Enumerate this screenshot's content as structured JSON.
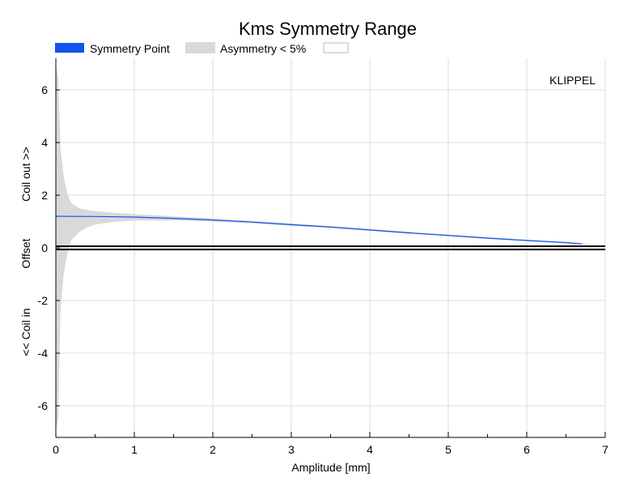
{
  "chart_data": {
    "type": "area",
    "title": "Kms Symmetry Range",
    "xlabel": "Amplitude [mm]",
    "ylabel": {
      "top": "Coil out >>",
      "middle": "Offset",
      "bottom": "<< Coil in"
    },
    "watermark": "KLIPPEL",
    "xlim": [
      0,
      7
    ],
    "ylim": [
      -7.2,
      7.2
    ],
    "x_ticks": [
      0,
      1,
      2,
      3,
      4,
      5,
      6,
      7
    ],
    "y_ticks": [
      -6,
      -4,
      -2,
      0,
      2,
      4,
      6
    ],
    "grid": true,
    "legend": {
      "position": "top",
      "entries": [
        {
          "label": "Symmetry Point",
          "color": "#1155ee",
          "kind": "filled"
        },
        {
          "label": "Asymmetry < 5%",
          "color": "#d9d9d9",
          "kind": "filled"
        },
        {
          "label": "",
          "color": "#ffffff",
          "kind": "outline"
        }
      ]
    },
    "series": [
      {
        "name": "Symmetry Point",
        "color": "#1155ee",
        "x": [
          0,
          0.5,
          1,
          1.5,
          2,
          2.5,
          3,
          3.5,
          4,
          4.5,
          5,
          5.5,
          6,
          6.5,
          6.7
        ],
        "values": [
          1.2,
          1.19,
          1.17,
          1.12,
          1.06,
          0.98,
          0.88,
          0.79,
          0.68,
          0.57,
          0.47,
          0.37,
          0.28,
          0.2,
          0.15
        ]
      },
      {
        "name": "Asymmetry < 5%",
        "color": "#d9d9d9",
        "x": [
          0,
          0.03,
          0.06,
          0.1,
          0.15,
          0.2,
          0.3,
          0.4,
          0.5,
          0.7,
          1,
          1.5,
          2,
          2.5,
          3,
          3.5,
          4,
          4.5,
          5,
          5.5,
          6,
          6.5,
          6.75
        ],
        "upper": [
          6.9,
          6.5,
          3.8,
          2.7,
          2.0,
          1.7,
          1.5,
          1.43,
          1.4,
          1.34,
          1.28,
          1.2,
          1.12,
          1.03,
          0.93,
          0.83,
          0.72,
          0.61,
          0.51,
          0.41,
          0.31,
          0.22,
          0.17
        ],
        "lower": [
          -6.9,
          -6.5,
          -2.4,
          -1.0,
          -0.2,
          0.3,
          0.6,
          0.78,
          0.88,
          0.98,
          1.04,
          1.04,
          1.0,
          0.93,
          0.84,
          0.75,
          0.64,
          0.54,
          0.44,
          0.34,
          0.25,
          0.17,
          0.13
        ]
      }
    ],
    "reference_line": {
      "y": 0,
      "color": "#000000"
    }
  }
}
